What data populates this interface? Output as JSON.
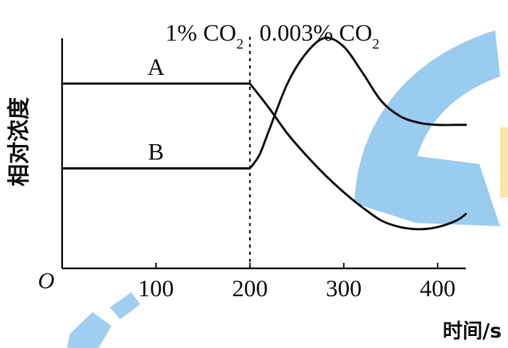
{
  "colors": {
    "watermark_blue": "#8fc6ee",
    "watermark_yellow": "#f8e7a8",
    "line": "#111111"
  },
  "chart_data": {
    "type": "line",
    "title": "",
    "xlabel": "时间/s",
    "ylabel": "相对浓度",
    "origin_label": "O",
    "xlim": [
      0,
      430
    ],
    "ylim": [
      0,
      1
    ],
    "x_ticks": [
      100,
      200,
      300,
      400
    ],
    "annotations": [
      {
        "text_prefix": "1% CO",
        "text_subscript": "2",
        "x": 200,
        "side": "left"
      },
      {
        "text_prefix": "0.003% CO",
        "text_subscript": "2",
        "x": 200,
        "side": "right"
      }
    ],
    "divider_x": 200,
    "series": [
      {
        "name": "A",
        "x": [
          0,
          100,
          200,
          220,
          240,
          260,
          280,
          300,
          320,
          340,
          360,
          380,
          400,
          420,
          430
        ],
        "y": [
          0.85,
          0.85,
          0.85,
          0.74,
          0.62,
          0.52,
          0.43,
          0.35,
          0.28,
          0.22,
          0.19,
          0.18,
          0.19,
          0.22,
          0.25
        ]
      },
      {
        "name": "B",
        "x": [
          0,
          100,
          200,
          210,
          220,
          240,
          260,
          280,
          300,
          320,
          340,
          360,
          380,
          400,
          420,
          430
        ],
        "y": [
          0.46,
          0.46,
          0.46,
          0.52,
          0.63,
          0.85,
          0.99,
          1.06,
          1.02,
          0.9,
          0.77,
          0.7,
          0.67,
          0.66,
          0.66,
          0.66
        ]
      }
    ]
  }
}
